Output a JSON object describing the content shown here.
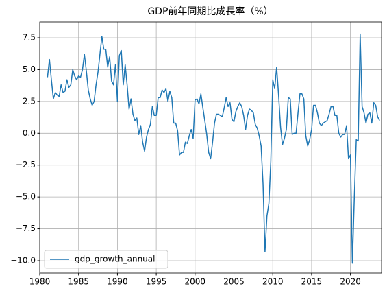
{
  "chart_data": {
    "type": "line",
    "title": "GDP前年同期比成長率（%）",
    "x": [
      1981,
      1981.25,
      1981.5,
      1981.75,
      1982,
      1982.25,
      1982.5,
      1982.75,
      1983,
      1983.25,
      1983.5,
      1983.75,
      1984,
      1984.25,
      1984.5,
      1984.75,
      1985,
      1985.25,
      1985.5,
      1985.75,
      1986,
      1986.25,
      1986.5,
      1986.75,
      1987,
      1987.25,
      1987.5,
      1987.75,
      1988,
      1988.25,
      1988.5,
      1988.75,
      1989,
      1989.25,
      1989.5,
      1989.75,
      1990,
      1990.25,
      1990.5,
      1990.75,
      1991,
      1991.25,
      1991.5,
      1991.75,
      1992,
      1992.25,
      1992.5,
      1992.75,
      1993,
      1993.25,
      1993.5,
      1993.75,
      1994,
      1994.25,
      1994.5,
      1994.75,
      1995,
      1995.25,
      1995.5,
      1995.75,
      1996,
      1996.25,
      1996.5,
      1996.75,
      1997,
      1997.25,
      1997.5,
      1997.75,
      1998,
      1998.25,
      1998.5,
      1998.75,
      1999,
      1999.25,
      1999.5,
      1999.75,
      2000,
      2000.25,
      2000.5,
      2000.75,
      2001,
      2001.25,
      2001.5,
      2001.75,
      2002,
      2002.25,
      2002.5,
      2002.75,
      2003,
      2003.25,
      2003.5,
      2003.75,
      2004,
      2004.25,
      2004.5,
      2004.75,
      2005,
      2005.25,
      2005.5,
      2005.75,
      2006,
      2006.25,
      2006.5,
      2006.75,
      2007,
      2007.25,
      2007.5,
      2007.75,
      2008,
      2008.25,
      2008.5,
      2008.75,
      2009,
      2009.25,
      2009.5,
      2009.75,
      2010,
      2010.25,
      2010.5,
      2010.75,
      2011,
      2011.25,
      2011.5,
      2011.75,
      2012,
      2012.25,
      2012.5,
      2012.75,
      2013,
      2013.25,
      2013.5,
      2013.75,
      2014,
      2014.25,
      2014.5,
      2014.75,
      2015,
      2015.25,
      2015.5,
      2015.75,
      2016,
      2016.25,
      2016.5,
      2016.75,
      2017,
      2017.25,
      2017.5,
      2017.75,
      2018,
      2018.25,
      2018.5,
      2018.75,
      2019,
      2019.25,
      2019.5,
      2019.75,
      2020,
      2020.25,
      2020.5,
      2020.75,
      2021,
      2021.25,
      2021.5,
      2021.75,
      2022,
      2022.25,
      2022.5,
      2022.75,
      2023,
      2023.25,
      2023.5,
      2023.75
    ],
    "series": [
      {
        "name": "gdp_growth_annual",
        "color": "#1f77b4",
        "values": [
          4.4,
          5.8,
          4.2,
          2.7,
          3.2,
          3.0,
          2.9,
          3.8,
          3.2,
          3.3,
          4.2,
          3.6,
          3.8,
          5.0,
          4.5,
          4.2,
          4.5,
          4.4,
          5.0,
          6.2,
          4.9,
          3.4,
          2.7,
          2.2,
          2.5,
          3.8,
          4.8,
          6.2,
          7.6,
          6.6,
          6.6,
          5.2,
          6.0,
          4.1,
          3.8,
          5.4,
          2.5,
          6.1,
          6.5,
          3.8,
          5.4,
          3.8,
          1.9,
          2.7,
          1.5,
          1.0,
          1.2,
          -0.1,
          0.6,
          -0.7,
          -1.4,
          -0.3,
          0.3,
          0.7,
          2.1,
          1.4,
          1.4,
          2.8,
          2.8,
          3.4,
          3.2,
          3.5,
          2.5,
          3.3,
          2.8,
          0.8,
          0.8,
          0.2,
          -1.7,
          -1.5,
          -1.5,
          -0.7,
          -0.8,
          -0.2,
          0.3,
          -0.4,
          2.6,
          2.7,
          2.3,
          3.1,
          2.0,
          1.0,
          -0.1,
          -1.5,
          -2.0,
          -0.7,
          0.8,
          1.5,
          1.5,
          1.4,
          1.3,
          2.0,
          2.8,
          2.1,
          2.4,
          1.1,
          0.9,
          1.7,
          2.1,
          2.4,
          2.1,
          1.4,
          0.3,
          1.4,
          1.9,
          1.8,
          1.6,
          0.7,
          0.4,
          -0.2,
          -1.0,
          -4.0,
          -9.3,
          -6.5,
          -5.5,
          -2.2,
          4.2,
          3.5,
          5.2,
          3.0,
          0.5,
          -0.9,
          -0.4,
          0.3,
          2.8,
          2.7,
          -0.1,
          0.0,
          0.0,
          1.6,
          3.1,
          3.1,
          2.7,
          -0.2,
          -1.0,
          -0.5,
          0.3,
          2.2,
          2.2,
          1.6,
          0.8,
          0.6,
          0.8,
          0.9,
          1.0,
          1.5,
          2.1,
          2.1,
          1.4,
          1.4,
          0.0,
          -0.3,
          -0.1,
          -0.1,
          0.6,
          -2.0,
          -1.7,
          -10.2,
          -5.0,
          -0.5,
          -0.6,
          7.8,
          2.1,
          1.6,
          0.8,
          1.5,
          1.6,
          0.8,
          2.4,
          2.2,
          1.3,
          1.0
        ]
      }
    ],
    "xlim": [
      1980,
      2024
    ],
    "xticks": [
      1980,
      1985,
      1990,
      1995,
      2000,
      2005,
      2010,
      2015,
      2020
    ],
    "ylim": [
      -10.97,
      8.74
    ],
    "yticks": [
      {
        "value": -10,
        "label": "−10.0"
      },
      {
        "value": -7.5,
        "label": "−7.5"
      },
      {
        "value": -5,
        "label": "−5.0"
      },
      {
        "value": -2.5,
        "label": "−2.5"
      },
      {
        "value": 0,
        "label": "0.0"
      },
      2.5,
      {
        "value": 5,
        "label": "5.0"
      },
      7.5
    ],
    "grid": true,
    "legend": "lower left"
  }
}
